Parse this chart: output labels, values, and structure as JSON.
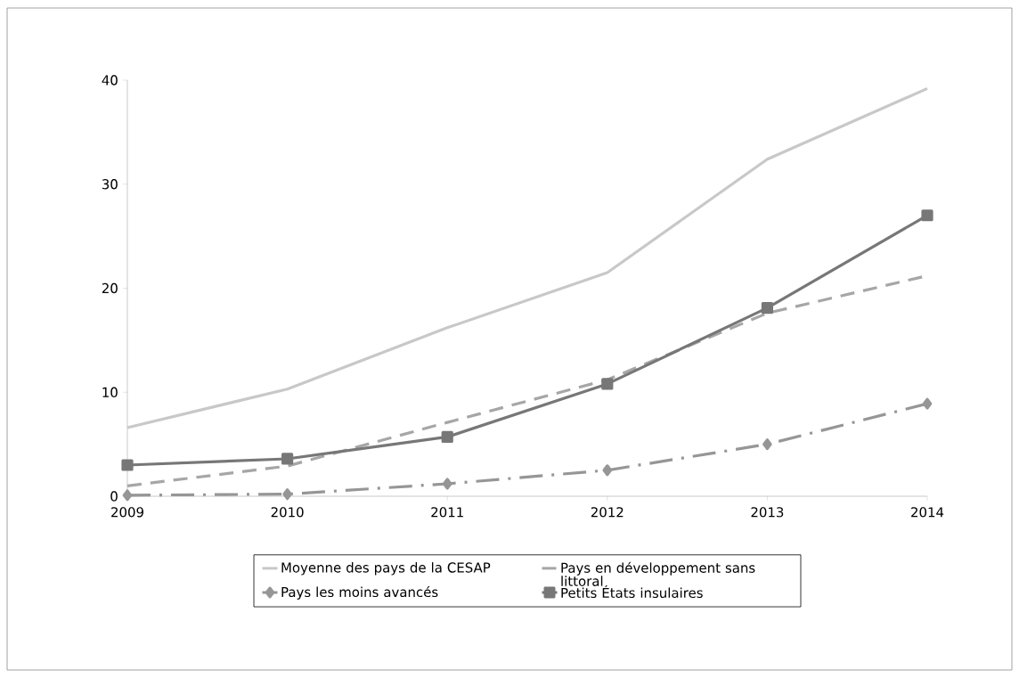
{
  "chart_data": {
    "type": "line",
    "categories": [
      "2009",
      "2010",
      "2011",
      "2012",
      "2013",
      "2014"
    ],
    "series": [
      {
        "name": "Moyenne des pays de la CESAP",
        "color": "#c8c8c8",
        "values": [
          6.6,
          10.3,
          16.2,
          21.5,
          32.4,
          39.2
        ],
        "marker": "none",
        "line_style": "solid"
      },
      {
        "name": "Pays en développement sans littoral",
        "color": "#a6a6a6",
        "values": [
          1.0,
          2.9,
          7.1,
          11.2,
          17.6,
          21.2
        ],
        "marker": "none",
        "line_style": "dashed"
      },
      {
        "name": "Pays les moins avancés",
        "color": "#969696",
        "values": [
          0.1,
          0.2,
          1.2,
          2.5,
          5.0,
          8.9
        ],
        "marker": "diamond",
        "line_style": "dashdot"
      },
      {
        "name": "Petits États insulaires",
        "color": "#777777",
        "values": [
          3.0,
          3.6,
          5.7,
          10.8,
          18.1,
          27.0
        ],
        "marker": "square",
        "line_style": "solid"
      }
    ],
    "ylim": [
      0,
      40
    ],
    "yticks": [
      0,
      10,
      20,
      30,
      40
    ],
    "grid": false,
    "legend": "bottom"
  }
}
